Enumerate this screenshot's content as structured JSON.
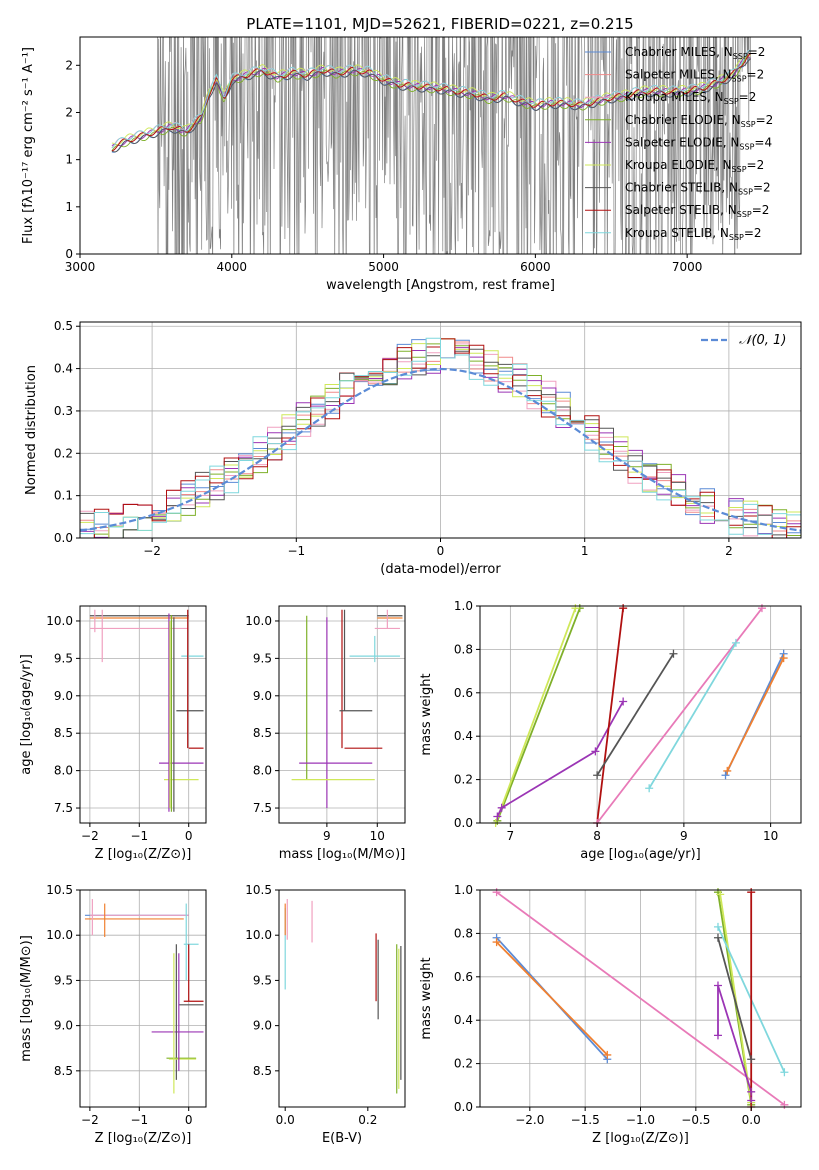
{
  "title": "PLATE=1101, MJD=52621, FIBERID=0221, z=0.215",
  "colors": {
    "chabrier_miles": "#5b8bd6",
    "salpeter_miles": "#f08a8a",
    "kroupa_miles": "#f0a0c0",
    "chabrier_elodie": "#7fb02a",
    "salpeter_elodie": "#9b35b5",
    "kroupa_elodie": "#cfe85a",
    "chabrier_stelib": "#555555",
    "salpeter_stelib": "#b01010",
    "kroupa_stelib": "#7fd7dd",
    "data_spectrum": "#808080",
    "normal_curve": "#5b8bd6",
    "mass_weight_orange": "#f08030",
    "mass_weight_pink": "#e87ab8",
    "grid": "#b0b0b0"
  },
  "chart_data": [
    {
      "type": "line",
      "id": "spectrum",
      "title": "PLATE=1101, MJD=52621, FIBERID=0221, z=0.215",
      "xlabel": "wavelength [Angstrom, rest frame]",
      "ylabel": "Flux [fλ10⁻¹⁷ erg cm⁻² s⁻¹ A⁻¹]",
      "xlim": [
        3000,
        7750
      ],
      "ylim": [
        0,
        2.3
      ],
      "xticks": [
        3000,
        4000,
        5000,
        6000,
        7000
      ],
      "yticks": [
        0.0,
        0.5,
        1.0,
        1.5,
        2.0
      ],
      "grid": false,
      "legend_position": "right",
      "series": [
        {
          "name": "Chabrier MILES, N_SSP=2",
          "color_key": "chabrier_miles"
        },
        {
          "name": "Salpeter MILES, N_SSP=2",
          "color_key": "salpeter_miles"
        },
        {
          "name": "Kroupa MILES, N_SSP=2",
          "color_key": "kroupa_miles"
        },
        {
          "name": "Chabrier ELODIE, N_SSP=2",
          "color_key": "chabrier_elodie"
        },
        {
          "name": "Salpeter ELODIE, N_SSP=4",
          "color_key": "salpeter_elodie"
        },
        {
          "name": "Kroupa ELODIE, N_SSP=2",
          "color_key": "kroupa_elodie"
        },
        {
          "name": "Chabrier STELIB, N_SSP=2",
          "color_key": "chabrier_stelib"
        },
        {
          "name": "Salpeter STELIB, N_SSP=2",
          "color_key": "salpeter_stelib"
        },
        {
          "name": "Kroupa STELIB, N_SSP=2",
          "color_key": "kroupa_stelib"
        }
      ],
      "model_shape": {
        "x": [
          3210,
          3300,
          3400,
          3500,
          3600,
          3700,
          3800,
          3850,
          3900,
          3950,
          4000,
          4100,
          4200,
          4300,
          4400,
          4500,
          4600,
          4700,
          4800,
          4900,
          5000,
          5100,
          5200,
          5300,
          5400,
          5500,
          5600,
          5700,
          5800,
          5900,
          6000,
          6100,
          6200,
          6300,
          6400,
          6500,
          6600,
          6700,
          6800,
          6900,
          7000,
          7100,
          7200,
          7300,
          7400
        ],
        "y": [
          1.12,
          1.2,
          1.25,
          1.3,
          1.35,
          1.3,
          1.45,
          1.7,
          1.85,
          1.65,
          1.85,
          1.9,
          1.95,
          1.88,
          1.92,
          1.9,
          1.95,
          1.92,
          1.95,
          1.93,
          1.85,
          1.8,
          1.78,
          1.77,
          1.75,
          1.72,
          1.7,
          1.65,
          1.68,
          1.62,
          1.58,
          1.6,
          1.6,
          1.58,
          1.62,
          1.66,
          1.68,
          1.72,
          1.73,
          1.72,
          1.73,
          1.76,
          1.82,
          1.9,
          2.1
        ]
      },
      "data_range": [
        3510,
        7420
      ]
    },
    {
      "type": "line",
      "id": "residuals",
      "xlabel": "(data-model)/error",
      "ylabel": "Normed distribution",
      "xlim": [
        -2.5,
        2.5
      ],
      "ylim": [
        0,
        0.51
      ],
      "xticks": [
        -2,
        -1,
        0,
        1,
        2
      ],
      "yticks": [
        0.0,
        0.1,
        0.2,
        0.3,
        0.4,
        0.5
      ],
      "grid": true,
      "legend_position": "top-right",
      "legend": "𝒩(0, 1)",
      "normal": {
        "mean": 0,
        "sigma": 1
      },
      "bin_width": 0.1
    },
    {
      "type": "scatter",
      "id": "age_vs_z",
      "xlabel": "Z [log₁₀(Z/Z⊙)]",
      "ylabel": "age  [log₁₀(age/yr)]",
      "xlim": [
        -2.2,
        0.35
      ],
      "ylim": [
        7.3,
        10.2
      ],
      "xticks": [
        -2,
        -1,
        0
      ],
      "yticks": [
        7.5,
        8.0,
        8.5,
        9.0,
        9.5,
        10.0
      ],
      "grid": true,
      "points": [
        {
          "x": -1.0,
          "y": 10.07,
          "x0": -2.0,
          "x1": 0.0,
          "y0": 10.07,
          "y1": 10.07,
          "color_key": "chabrier_stelib"
        },
        {
          "x": -1.0,
          "y": 10.04,
          "x0": -2.0,
          "x1": 0.0,
          "y0": 10.04,
          "y1": 10.04,
          "color_key": "mass_weight_orange"
        },
        {
          "x": -1.0,
          "y": 9.9,
          "x0": -2.0,
          "x1": 0.0,
          "y0": 9.9,
          "y1": 9.9,
          "color_key": "kroupa_miles"
        },
        {
          "x": -1.75,
          "y": 9.8,
          "x0": -1.75,
          "x1": -1.75,
          "y0": 9.45,
          "y1": 10.15,
          "color_key": "kroupa_miles"
        },
        {
          "x": -1.9,
          "y": 10.0,
          "x0": -1.9,
          "x1": -1.9,
          "y0": 9.85,
          "y1": 10.15,
          "color_key": "kroupa_miles"
        },
        {
          "x": 0.1,
          "y": 9.53,
          "x0": -0.15,
          "x1": 0.3,
          "y0": 9.53,
          "y1": 9.53,
          "color_key": "kroupa_stelib"
        },
        {
          "x": 0.0,
          "y": 8.8,
          "x0": -0.25,
          "x1": 0.3,
          "y0": 8.8,
          "y1": 8.8,
          "color_key": "chabrier_stelib"
        },
        {
          "x": 0.0,
          "y": 8.3,
          "x0": 0.0,
          "x1": 0.3,
          "y0": 8.3,
          "y1": 8.3,
          "color_key": "salpeter_stelib"
        },
        {
          "x": 0.0,
          "y": 8.1,
          "x0": -0.6,
          "x1": 0.3,
          "y0": 8.1,
          "y1": 8.1,
          "color_key": "salpeter_elodie"
        },
        {
          "x": -0.1,
          "y": 7.88,
          "x0": -0.5,
          "x1": 0.2,
          "y0": 7.88,
          "y1": 7.88,
          "color_key": "kroupa_elodie"
        }
      ]
    },
    {
      "type": "scatter",
      "id": "age_vs_mass",
      "xlabel": "mass [log₁₀(M/M⊙)]",
      "ylabel": "",
      "xlim": [
        8.05,
        10.55
      ],
      "ylim": [
        7.3,
        10.2
      ],
      "xticks": [
        9,
        10
      ],
      "yticks": [
        7.5,
        8.0,
        8.5,
        9.0,
        9.5,
        10.0
      ],
      "grid": true
    },
    {
      "type": "line",
      "id": "mass_weight_vs_age",
      "xlabel": "age  [log₁₀(age/yr)]",
      "ylabel": "mass weight",
      "xlim": [
        6.65,
        10.35
      ],
      "ylim": [
        0,
        1
      ],
      "xticks": [
        7,
        8,
        9,
        10
      ],
      "yticks": [
        0.0,
        0.2,
        0.4,
        0.6,
        0.8,
        1.0
      ],
      "grid": true,
      "series": [
        {
          "color_key": "chabrier_elodie",
          "x": [
            6.85,
            7.8
          ],
          "y": [
            0.01,
            0.99
          ]
        },
        {
          "color_key": "kroupa_elodie",
          "x": [
            6.83,
            7.75
          ],
          "y": [
            0.0,
            0.99
          ]
        },
        {
          "color_key": "salpeter_elodie",
          "x": [
            6.85,
            6.9,
            7.98,
            8.3
          ],
          "y": [
            0.03,
            0.07,
            0.33,
            0.56
          ]
        },
        {
          "color_key": "salpeter_stelib",
          "x": [
            8.0,
            8.3
          ],
          "y": [
            0.0,
            0.99
          ]
        },
        {
          "color_key": "chabrier_stelib",
          "x": [
            8.0,
            8.88
          ],
          "y": [
            0.22,
            0.78
          ]
        },
        {
          "color_key": "mass_weight_pink",
          "x": [
            8.0,
            9.9
          ],
          "y": [
            0.0,
            0.99
          ]
        },
        {
          "color_key": "kroupa_stelib",
          "x": [
            8.6,
            9.6
          ],
          "y": [
            0.16,
            0.83
          ]
        },
        {
          "color_key": "chabrier_miles",
          "x": [
            9.48,
            10.15
          ],
          "y": [
            0.22,
            0.78
          ]
        },
        {
          "color_key": "mass_weight_orange",
          "x": [
            9.5,
            10.15
          ],
          "y": [
            0.24,
            0.76
          ]
        }
      ]
    },
    {
      "type": "scatter",
      "id": "mass_vs_z",
      "xlabel": "Z [log₁₀(Z/Z⊙)]",
      "ylabel": "mass [log₁₀(M/M⊙)]",
      "xlim": [
        -2.2,
        0.35
      ],
      "ylim": [
        8.1,
        10.5
      ],
      "xticks": [
        -2,
        -1,
        0
      ],
      "yticks": [
        8.5,
        9.0,
        9.5,
        10.0,
        10.5
      ],
      "grid": true
    },
    {
      "type": "scatter",
      "id": "mass_vs_ebv",
      "xlabel": "E(B-V)",
      "ylabel": "",
      "xlim": [
        -0.015,
        0.29
      ],
      "ylim": [
        8.1,
        10.5
      ],
      "xticks": [
        0.0,
        0.2
      ],
      "yticks": [
        8.5,
        9.0,
        9.5,
        10.0,
        10.5
      ],
      "grid": false
    },
    {
      "type": "line",
      "id": "mass_weight_vs_z",
      "xlabel": "Z [log₁₀(Z/Z⊙)]",
      "ylabel": "mass weight",
      "xlim": [
        -2.45,
        0.45
      ],
      "ylim": [
        0,
        1
      ],
      "xticks": [
        -2.0,
        -1.5,
        -1.0,
        -0.5,
        0.0
      ],
      "yticks": [
        0.0,
        0.2,
        0.4,
        0.6,
        0.8,
        1.0
      ],
      "grid": true,
      "series": [
        {
          "color_key": "chabrier_miles",
          "x": [
            -2.3,
            -1.3
          ],
          "y": [
            0.78,
            0.22
          ]
        },
        {
          "color_key": "mass_weight_orange",
          "x": [
            -2.3,
            -1.3
          ],
          "y": [
            0.76,
            0.24
          ]
        },
        {
          "color_key": "mass_weight_pink",
          "x": [
            -2.3,
            0.3
          ],
          "y": [
            0.99,
            0.01
          ]
        },
        {
          "color_key": "chabrier_elodie",
          "x": [
            -0.3,
            0.0
          ],
          "y": [
            0.99,
            0.01
          ]
        },
        {
          "color_key": "kroupa_elodie",
          "x": [
            -0.28,
            0.0
          ],
          "y": [
            0.98,
            0.02
          ]
        },
        {
          "color_key": "salpeter_elodie",
          "x": [
            -0.3,
            -0.3,
            0.0,
            0.0
          ],
          "y": [
            0.33,
            0.56,
            0.07,
            0.03
          ]
        },
        {
          "color_key": "chabrier_stelib",
          "x": [
            -0.3,
            0.0
          ],
          "y": [
            0.78,
            0.22
          ]
        },
        {
          "color_key": "kroupa_stelib",
          "x": [
            -0.3,
            0.3
          ],
          "y": [
            0.83,
            0.16
          ]
        },
        {
          "color_key": "salpeter_stelib",
          "x": [
            0.0,
            0.0
          ],
          "y": [
            0.0,
            0.99
          ]
        }
      ]
    }
  ]
}
